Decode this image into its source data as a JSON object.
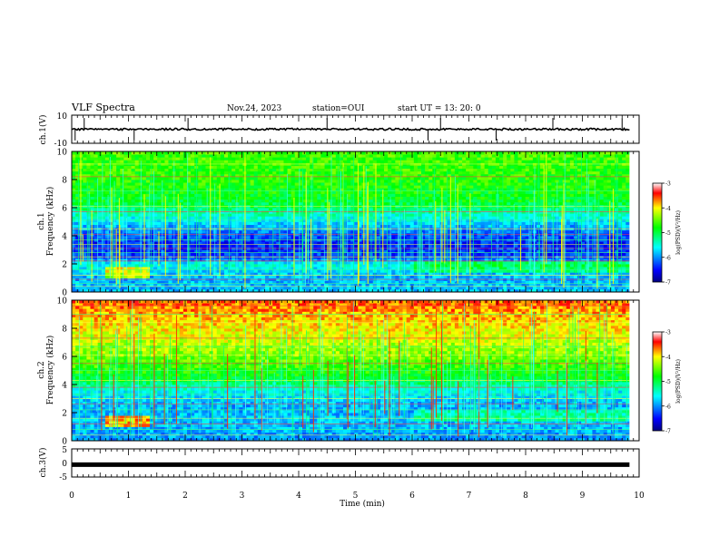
{
  "header": {
    "title": "VLF Spectra",
    "date": "Nov.24, 2023",
    "station": "station=OUI",
    "start": "start  UT =  13: 20: 0"
  },
  "chart_data": [
    {
      "type": "line",
      "name": "ch1-waveform",
      "ylabel": "ch.1(V)",
      "ylim": [
        -10,
        10
      ],
      "yticks": [
        "10",
        "-10"
      ],
      "baseline_v": 0,
      "spikes_min": [
        0.06,
        0.22,
        1.1,
        2.05,
        4.5,
        6.28,
        6.5,
        7.48,
        8.48,
        9.7
      ]
    },
    {
      "type": "heatmap",
      "name": "ch1-spectrogram",
      "ylabel": "ch.1\nFrequency (kHz)",
      "ylim": [
        0,
        10
      ],
      "yticks": [
        "0",
        "2",
        "4",
        "6",
        "8",
        "10"
      ],
      "colorbar": {
        "label": "log(PSD)(V²/Hz)",
        "range": [
          -7,
          -3
        ],
        "ticks": [
          "-3",
          "-4",
          "-5",
          "-6",
          "-7"
        ]
      },
      "profile_by_freq_khz": [
        [
          0,
          -5.8
        ],
        [
          1,
          -5.9
        ],
        [
          2,
          -5.5
        ],
        [
          2.5,
          -6.3
        ],
        [
          3.5,
          -6.4
        ],
        [
          4.5,
          -6.0
        ],
        [
          5.5,
          -5.4
        ],
        [
          6.5,
          -4.9
        ],
        [
          8,
          -4.7
        ],
        [
          10,
          -4.6
        ]
      ],
      "horizontal_lines_khz": [
        0.4,
        0.6,
        0.9,
        1.2,
        1.6,
        2.2,
        2.5,
        2.8,
        3.1,
        3.4,
        3.7,
        4.1,
        4.5,
        5.1,
        5.7,
        6.1,
        7.2,
        8.2,
        9.1
      ]
    },
    {
      "type": "heatmap",
      "name": "ch2-spectrogram",
      "ylabel": "ch.2\nFrequency (kHz)",
      "ylim": [
        0,
        10
      ],
      "yticks": [
        "0",
        "2",
        "4",
        "6",
        "8",
        "10"
      ],
      "colorbar": {
        "label": "log(PSD)(V²/Hz)",
        "range": [
          -7,
          -3
        ],
        "ticks": [
          "-3",
          "-4",
          "-5",
          "-6",
          "-7"
        ]
      },
      "profile_by_freq_khz": [
        [
          0,
          -6.0
        ],
        [
          1.5,
          -5.8
        ],
        [
          2.5,
          -5.9
        ],
        [
          3.5,
          -5.6
        ],
        [
          4.5,
          -4.9
        ],
        [
          6,
          -4.4
        ],
        [
          7.5,
          -4.1
        ],
        [
          9,
          -3.8
        ],
        [
          10,
          -3.6
        ]
      ],
      "horizontal_lines_khz": [
        0.4,
        0.8,
        1.2,
        1.6,
        2.2,
        2.6,
        3.0,
        3.3,
        3.8,
        4.3,
        5.0,
        5.5,
        6.1,
        6.7,
        7.3,
        8.4,
        9.0,
        9.6
      ]
    },
    {
      "type": "line",
      "name": "ch3-waveform",
      "ylabel": "ch.3(V)",
      "ylim": [
        -5,
        5
      ],
      "yticks": [
        "5",
        "0",
        "-5"
      ],
      "value_v": -0.6
    }
  ],
  "xaxis": {
    "label": "Time (min)",
    "range": [
      0,
      10
    ],
    "ticks": [
      "0",
      "1",
      "2",
      "3",
      "4",
      "5",
      "6",
      "7",
      "8",
      "9",
      "10"
    ],
    "data_end_min": 9.83
  }
}
